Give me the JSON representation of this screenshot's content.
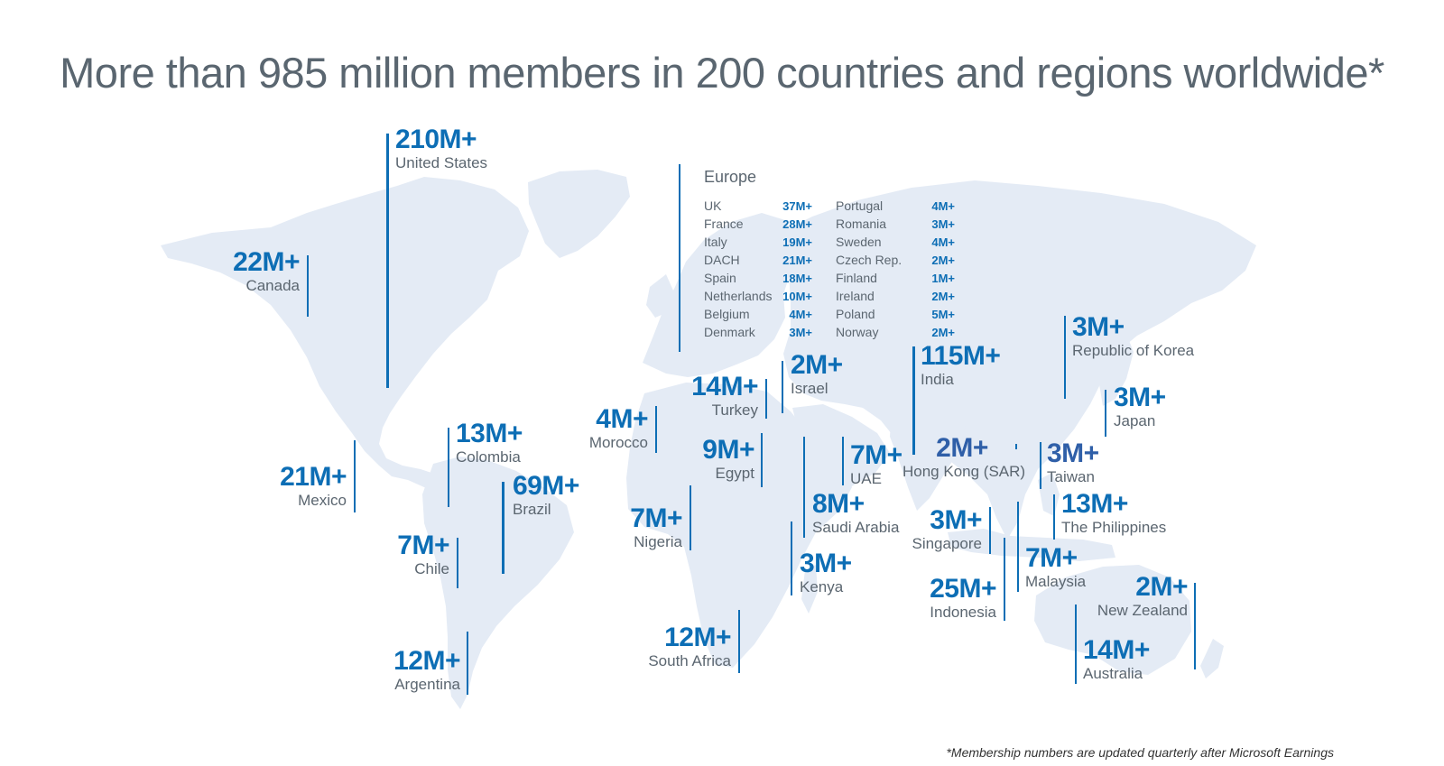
{
  "title": "More than 985 million members in 200 countries and regions worldwide*",
  "footnote": "*Membership numbers are updated quarterly after Microsoft Earnings",
  "colors": {
    "accent": "#0d6eb5",
    "land": "#e4ebf5",
    "label": "#5b6670",
    "title": "#5a6670"
  },
  "countries": {
    "united_states": {
      "value": "210M+",
      "name": "United States"
    },
    "canada": {
      "value": "22M+",
      "name": "Canada"
    },
    "mexico": {
      "value": "21M+",
      "name": "Mexico"
    },
    "colombia": {
      "value": "13M+",
      "name": "Colombia"
    },
    "brazil": {
      "value": "69M+",
      "name": "Brazil"
    },
    "chile": {
      "value": "7M+",
      "name": "Chile"
    },
    "argentina": {
      "value": "12M+",
      "name": "Argentina"
    },
    "morocco": {
      "value": "4M+",
      "name": "Morocco"
    },
    "turkey": {
      "value": "14M+",
      "name": "Turkey"
    },
    "israel": {
      "value": "2M+",
      "name": "Israel"
    },
    "egypt": {
      "value": "9M+",
      "name": "Egypt"
    },
    "nigeria": {
      "value": "7M+",
      "name": "Nigeria"
    },
    "uae": {
      "value": "7M+",
      "name": "UAE"
    },
    "saudi_arabia": {
      "value": "8M+",
      "name": "Saudi Arabia"
    },
    "kenya": {
      "value": "3M+",
      "name": "Kenya"
    },
    "south_africa": {
      "value": "12M+",
      "name": "South Africa"
    },
    "india": {
      "value": "115M+",
      "name": "India"
    },
    "hong_kong": {
      "value": "2M+",
      "name": "Hong Kong (SAR)"
    },
    "taiwan": {
      "value": "3M+",
      "name": "Taiwan"
    },
    "korea": {
      "value": "3M+",
      "name": "Republic of Korea"
    },
    "japan": {
      "value": "3M+",
      "name": "Japan"
    },
    "philippines": {
      "value": "13M+",
      "name": "The Philippines"
    },
    "singapore": {
      "value": "3M+",
      "name": "Singapore"
    },
    "malaysia": {
      "value": "7M+",
      "name": "Malaysia"
    },
    "indonesia": {
      "value": "25M+",
      "name": "Indonesia"
    },
    "new_zealand": {
      "value": "2M+",
      "name": "New Zealand"
    },
    "australia": {
      "value": "14M+",
      "name": "Australia"
    }
  },
  "europe": {
    "title": "Europe",
    "left": [
      {
        "name": "UK",
        "value": "37M+"
      },
      {
        "name": "France",
        "value": "28M+"
      },
      {
        "name": "Italy",
        "value": "19M+"
      },
      {
        "name": "DACH",
        "value": "21M+"
      },
      {
        "name": "Spain",
        "value": "18M+"
      },
      {
        "name": "Netherlands",
        "value": "10M+"
      },
      {
        "name": "Belgium",
        "value": "4M+"
      },
      {
        "name": "Denmark",
        "value": "3M+"
      }
    ],
    "right": [
      {
        "name": "Portugal",
        "value": "4M+"
      },
      {
        "name": "Romania",
        "value": "3M+"
      },
      {
        "name": "Sweden",
        "value": "4M+"
      },
      {
        "name": "Czech Rep.",
        "value": "2M+"
      },
      {
        "name": "Finland",
        "value": "1M+"
      },
      {
        "name": "Ireland",
        "value": "2M+"
      },
      {
        "name": "Poland",
        "value": "5M+"
      },
      {
        "name": "Norway",
        "value": "2M+"
      }
    ]
  }
}
